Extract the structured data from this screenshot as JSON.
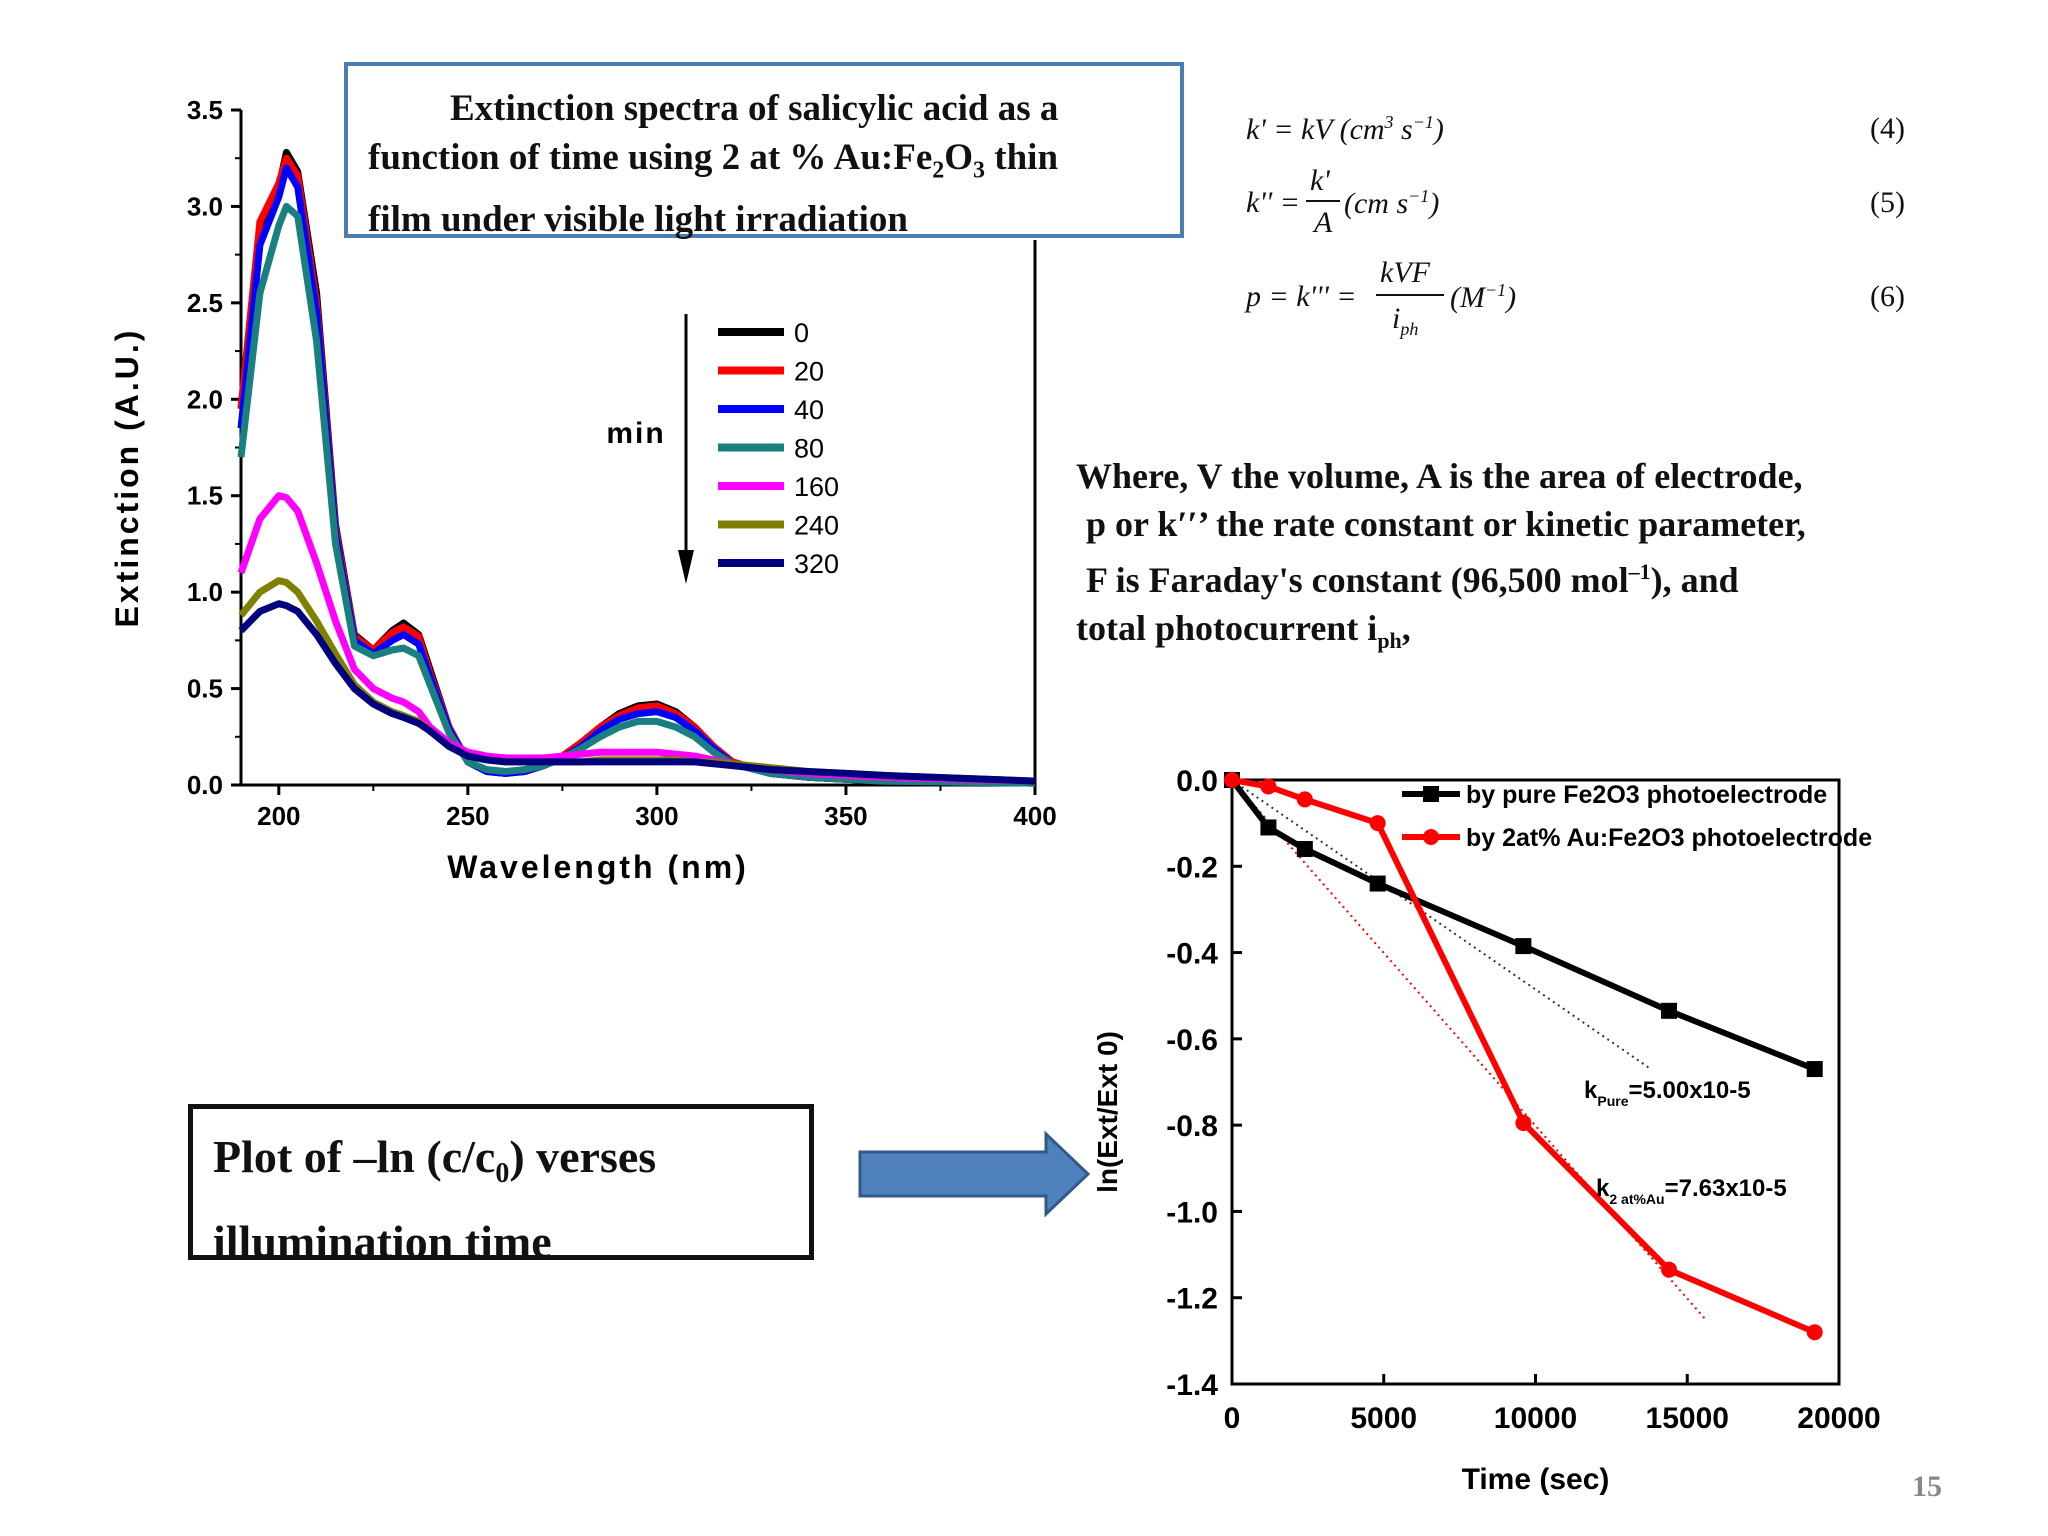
{
  "slide": {
    "title_box": {
      "line1": "Extinction spectra of salicylic acid as a",
      "line2_a": "function of time using 2 at % Au:Fe",
      "line2_sub1": "2",
      "line2_b": "O",
      "line2_sub2": "3",
      "line2_c": " thin",
      "line3": "film under visible light irradiation"
    },
    "equations": [
      {
        "text": "k' = kV (cm³ s⁻¹)",
        "number": "(4)"
      },
      {
        "text": "k'' = k'/A (cm s⁻¹)",
        "number": "(5)"
      },
      {
        "text": "p = k''' = kVF / i_ph (M⁻¹)",
        "number": "(6)"
      }
    ],
    "where_text": {
      "line1": "Where, V the volume, A is the area of electrode,",
      "line2": "p or k′′’ the rate constant or kinetic parameter,",
      "line3_a": "F is Faraday's constant (96,500 mol",
      "line3_sup": "–1",
      "line3_b": "), and",
      "line4_a": "total photocurrent i",
      "line4_sub": "ph",
      "line4_b": ","
    },
    "plot_box": {
      "line1_a": "Plot of –ln (c/c",
      "line1_sub": "0",
      "line1_b": ") verses",
      "line2": "illumination time"
    },
    "page_number": "15",
    "arrow_color": "#4f81bd"
  },
  "chart_data": [
    {
      "type": "line",
      "title": "",
      "xlabel": "Wavelength (nm)",
      "ylabel": "Extinction (A.U.)",
      "xlim": [
        190,
        400
      ],
      "ylim": [
        0,
        3.5
      ],
      "xticks": [
        "200",
        "250",
        "300",
        "350",
        "400"
      ],
      "yticks": [
        "0.0",
        "0.5",
        "1.0",
        "1.5",
        "2.0",
        "2.5",
        "3.0",
        "3.5"
      ],
      "legend_position": "center-right",
      "annotation": "min",
      "x": [
        190,
        195,
        200,
        202,
        205,
        210,
        215,
        220,
        225,
        230,
        233,
        237,
        240,
        245,
        250,
        255,
        260,
        265,
        270,
        275,
        280,
        285,
        290,
        295,
        300,
        305,
        310,
        315,
        320,
        330,
        340,
        350,
        360,
        380,
        400
      ],
      "series": [
        {
          "name": "0",
          "color": "#000000",
          "values": [
            1.95,
            2.9,
            3.1,
            3.28,
            3.18,
            2.55,
            1.35,
            0.78,
            0.7,
            0.8,
            0.84,
            0.78,
            0.6,
            0.3,
            0.12,
            0.07,
            0.06,
            0.07,
            0.1,
            0.15,
            0.22,
            0.3,
            0.37,
            0.41,
            0.42,
            0.38,
            0.3,
            0.2,
            0.12,
            0.06,
            0.04,
            0.03,
            0.02,
            0.015,
            0.01
          ]
        },
        {
          "name": "20",
          "color": "#ff0000",
          "values": [
            1.95,
            2.92,
            3.12,
            3.25,
            3.16,
            2.5,
            1.33,
            0.77,
            0.7,
            0.79,
            0.82,
            0.77,
            0.58,
            0.3,
            0.12,
            0.07,
            0.06,
            0.07,
            0.1,
            0.15,
            0.22,
            0.3,
            0.36,
            0.4,
            0.41,
            0.37,
            0.3,
            0.2,
            0.12,
            0.06,
            0.04,
            0.03,
            0.02,
            0.015,
            0.01
          ]
        },
        {
          "name": "40",
          "color": "#0000ff",
          "values": [
            1.85,
            2.8,
            3.05,
            3.2,
            3.1,
            2.45,
            1.3,
            0.75,
            0.68,
            0.75,
            0.78,
            0.73,
            0.56,
            0.29,
            0.12,
            0.07,
            0.06,
            0.07,
            0.1,
            0.14,
            0.2,
            0.28,
            0.34,
            0.37,
            0.38,
            0.35,
            0.28,
            0.19,
            0.11,
            0.06,
            0.04,
            0.03,
            0.02,
            0.015,
            0.01
          ]
        },
        {
          "name": "80",
          "color": "#1a7f7f",
          "values": [
            1.7,
            2.55,
            2.9,
            3.0,
            2.95,
            2.3,
            1.25,
            0.72,
            0.67,
            0.7,
            0.71,
            0.67,
            0.52,
            0.27,
            0.12,
            0.08,
            0.07,
            0.08,
            0.1,
            0.14,
            0.19,
            0.25,
            0.3,
            0.33,
            0.33,
            0.3,
            0.25,
            0.17,
            0.11,
            0.06,
            0.04,
            0.03,
            0.02,
            0.015,
            0.01
          ]
        },
        {
          "name": "160",
          "color": "#ff00ff",
          "values": [
            1.1,
            1.38,
            1.5,
            1.49,
            1.42,
            1.15,
            0.85,
            0.6,
            0.5,
            0.45,
            0.43,
            0.38,
            0.3,
            0.22,
            0.17,
            0.15,
            0.14,
            0.14,
            0.14,
            0.15,
            0.16,
            0.17,
            0.17,
            0.17,
            0.17,
            0.16,
            0.15,
            0.13,
            0.11,
            0.08,
            0.06,
            0.05,
            0.04,
            0.03,
            0.02
          ]
        },
        {
          "name": "240",
          "color": "#808000",
          "values": [
            0.88,
            1.0,
            1.06,
            1.05,
            1.0,
            0.85,
            0.68,
            0.52,
            0.43,
            0.38,
            0.36,
            0.33,
            0.28,
            0.2,
            0.15,
            0.13,
            0.12,
            0.12,
            0.12,
            0.12,
            0.12,
            0.13,
            0.13,
            0.13,
            0.13,
            0.13,
            0.12,
            0.12,
            0.11,
            0.09,
            0.07,
            0.06,
            0.05,
            0.035,
            0.02
          ]
        },
        {
          "name": "320",
          "color": "#00007f",
          "values": [
            0.8,
            0.9,
            0.94,
            0.93,
            0.9,
            0.78,
            0.63,
            0.5,
            0.42,
            0.37,
            0.35,
            0.32,
            0.28,
            0.2,
            0.15,
            0.13,
            0.12,
            0.12,
            0.12,
            0.12,
            0.12,
            0.12,
            0.12,
            0.12,
            0.12,
            0.12,
            0.12,
            0.11,
            0.1,
            0.08,
            0.07,
            0.06,
            0.05,
            0.035,
            0.02
          ]
        }
      ]
    },
    {
      "type": "line",
      "title": "",
      "xlabel": "Time (sec)",
      "ylabel": "ln(Ext/Ext 0)",
      "xlim": [
        0,
        20000
      ],
      "ylim": [
        -1.4,
        0.0
      ],
      "xticks": [
        "0",
        "5000",
        "10000",
        "15000",
        "20000"
      ],
      "yticks": [
        "0.0",
        "-0.2",
        "-0.4",
        "-0.6",
        "-0.8",
        "-1.0",
        "-1.2",
        "-1.4"
      ],
      "legend_position": "top-right",
      "series": [
        {
          "name": "by pure Fe2O3 photoelectrode",
          "color": "#000000",
          "marker": "square",
          "x": [
            0,
            1200,
            2400,
            4800,
            9600,
            14400,
            19200
          ],
          "values": [
            0.0,
            -0.11,
            -0.16,
            -0.24,
            -0.385,
            -0.535,
            -0.67
          ]
        },
        {
          "name": "by 2at% Au:Fe2O3 photoelectrode",
          "color": "#ff0000",
          "marker": "circle",
          "x": [
            0,
            1200,
            2400,
            4800,
            9600,
            14400,
            19200
          ],
          "values": [
            0.0,
            -0.015,
            -0.045,
            -0.1,
            -0.795,
            -1.135,
            -1.28
          ]
        }
      ],
      "fit_lines": [
        {
          "color": "#333333",
          "x": [
            0,
            13800
          ],
          "values": [
            0.0,
            -0.67
          ]
        },
        {
          "color": "#ff0000",
          "x": [
            0,
            15600
          ],
          "values": [
            0.0,
            -1.25
          ]
        }
      ],
      "annotations": [
        {
          "k": "k",
          "sub": "Pure",
          "value": "=5.00x10-5"
        },
        {
          "k": "k",
          "sub": "2 at%Au",
          "value": "=7.63x10-5"
        }
      ]
    }
  ]
}
